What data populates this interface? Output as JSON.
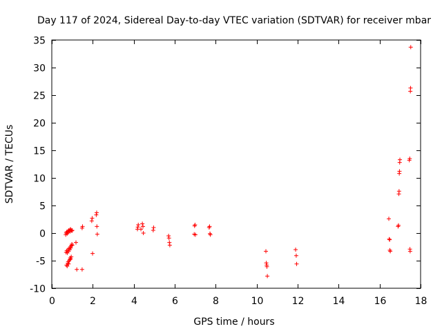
{
  "chart_data": {
    "type": "scatter",
    "title": "Day 117 of 2024, Sidereal Day-to-day VTEC variation (SDTVAR) for receiver mbar",
    "xlabel": "GPS time / hours",
    "ylabel": "SDTVAR / TECUs",
    "xlim": [
      0,
      18
    ],
    "ylim": [
      -10,
      35
    ],
    "xticks": [
      0,
      2,
      4,
      6,
      8,
      10,
      12,
      14,
      16,
      18
    ],
    "yticks": [
      -10,
      -5,
      0,
      5,
      10,
      15,
      20,
      25,
      30,
      35
    ],
    "grid": false,
    "marker": "+",
    "color": "#ff0000",
    "series": [
      {
        "name": "SDTVAR",
        "points": [
          [
            0.68,
            -0.3
          ],
          [
            0.7,
            0.0
          ],
          [
            0.72,
            0.2
          ],
          [
            0.75,
            -0.1
          ],
          [
            0.78,
            0.3
          ],
          [
            0.8,
            0.1
          ],
          [
            0.82,
            0.5
          ],
          [
            0.85,
            0.4
          ],
          [
            0.88,
            0.6
          ],
          [
            0.9,
            0.3
          ],
          [
            0.92,
            0.7
          ],
          [
            0.95,
            0.5
          ],
          [
            0.98,
            0.4
          ],
          [
            1.0,
            0.5
          ],
          [
            0.7,
            -3.5
          ],
          [
            0.73,
            -3.2
          ],
          [
            0.76,
            -3.6
          ],
          [
            0.79,
            -3.0
          ],
          [
            0.82,
            -3.3
          ],
          [
            0.85,
            -2.8
          ],
          [
            0.88,
            -3.0
          ],
          [
            0.9,
            -2.5
          ],
          [
            0.92,
            -2.7
          ],
          [
            0.95,
            -2.3
          ],
          [
            0.98,
            -2.0
          ],
          [
            1.0,
            -2.2
          ],
          [
            0.72,
            -5.8
          ],
          [
            0.75,
            -6.0
          ],
          [
            0.78,
            -5.5
          ],
          [
            0.8,
            -5.2
          ],
          [
            0.82,
            -5.6
          ],
          [
            0.85,
            -5.0
          ],
          [
            0.88,
            -4.8
          ],
          [
            0.9,
            -4.5
          ],
          [
            0.92,
            -4.7
          ],
          [
            0.95,
            -4.3
          ],
          [
            1.18,
            -1.7
          ],
          [
            1.22,
            -6.6
          ],
          [
            1.48,
            -6.6
          ],
          [
            1.48,
            0.9
          ],
          [
            1.5,
            1.2
          ],
          [
            1.95,
            2.2
          ],
          [
            1.97,
            2.7
          ],
          [
            1.99,
            -3.7
          ],
          [
            2.17,
            3.3
          ],
          [
            2.19,
            3.7
          ],
          [
            2.2,
            1.2
          ],
          [
            2.22,
            -0.2
          ],
          [
            4.18,
            0.7
          ],
          [
            4.2,
            1.1
          ],
          [
            4.22,
            1.5
          ],
          [
            4.35,
            0.7
          ],
          [
            4.42,
            1.7
          ],
          [
            4.45,
            1.2
          ],
          [
            4.47,
            0.0
          ],
          [
            4.95,
            0.5
          ],
          [
            4.97,
            1.0
          ],
          [
            5.7,
            -0.5
          ],
          [
            5.72,
            -0.9
          ],
          [
            5.74,
            -1.7
          ],
          [
            5.76,
            -2.2
          ],
          [
            6.95,
            -0.2
          ],
          [
            6.97,
            1.3
          ],
          [
            6.99,
            1.5
          ],
          [
            7.01,
            -0.3
          ],
          [
            7.68,
            1.0
          ],
          [
            7.7,
            1.2
          ],
          [
            7.72,
            -0.1
          ],
          [
            7.74,
            -0.3
          ],
          [
            10.45,
            -3.3
          ],
          [
            10.47,
            -5.4
          ],
          [
            10.49,
            -5.8
          ],
          [
            10.5,
            -6.1
          ],
          [
            10.52,
            -7.8
          ],
          [
            11.9,
            -3.0
          ],
          [
            11.93,
            -4.1
          ],
          [
            11.95,
            -5.6
          ],
          [
            16.45,
            2.6
          ],
          [
            16.47,
            -1.1
          ],
          [
            16.49,
            -1.2
          ],
          [
            16.5,
            -3.1
          ],
          [
            16.52,
            -3.3
          ],
          [
            16.9,
            1.2
          ],
          [
            16.92,
            1.4
          ],
          [
            16.94,
            7.1
          ],
          [
            16.95,
            7.6
          ],
          [
            16.96,
            10.8
          ],
          [
            16.97,
            11.2
          ],
          [
            16.98,
            12.8
          ],
          [
            16.99,
            13.3
          ],
          [
            17.45,
            13.2
          ],
          [
            17.47,
            13.5
          ],
          [
            17.48,
            -2.9
          ],
          [
            17.49,
            -3.3
          ],
          [
            17.5,
            25.7
          ],
          [
            17.51,
            26.3
          ],
          [
            17.52,
            33.7
          ]
        ]
      }
    ]
  }
}
